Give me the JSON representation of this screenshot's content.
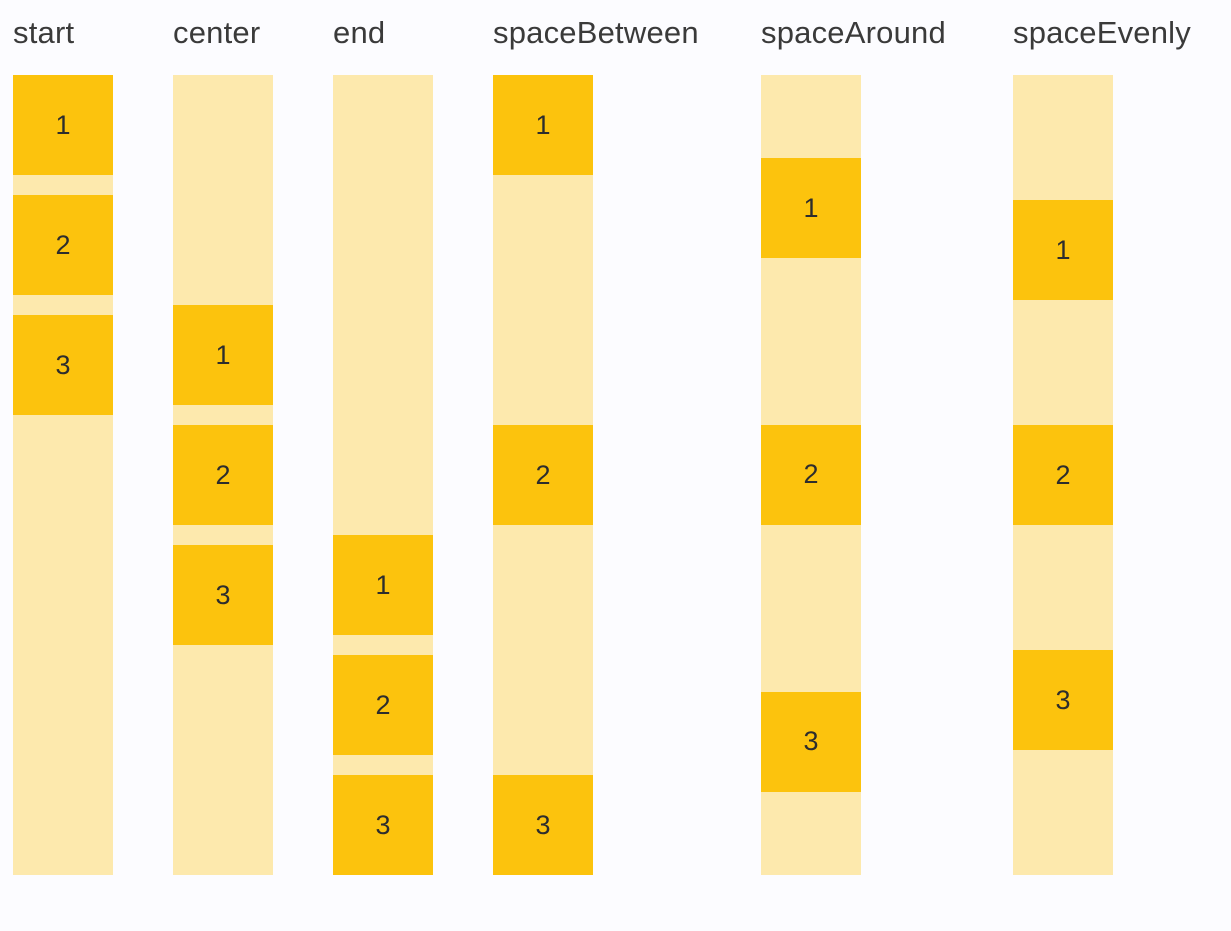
{
  "colors": {
    "page_background": "#fcfcff",
    "box_fill": "#fcc30d",
    "track_fill": "#fde9ad",
    "label_text": "#3a3a3a",
    "number_text": "#2d2d2d"
  },
  "columns": [
    {
      "label": "start",
      "justify": "start",
      "items": [
        "1",
        "2",
        "3"
      ]
    },
    {
      "label": "center",
      "justify": "center",
      "items": [
        "1",
        "2",
        "3"
      ]
    },
    {
      "label": "end",
      "justify": "end",
      "items": [
        "1",
        "2",
        "3"
      ]
    },
    {
      "label": "spaceBetween",
      "justify": "spaceBetween",
      "items": [
        "1",
        "2",
        "3"
      ]
    },
    {
      "label": "spaceAround",
      "justify": "spaceAround",
      "items": [
        "1",
        "2",
        "3"
      ]
    },
    {
      "label": "spaceEvenly",
      "justify": "spaceEvenly",
      "items": [
        "1",
        "2",
        "3"
      ]
    }
  ]
}
